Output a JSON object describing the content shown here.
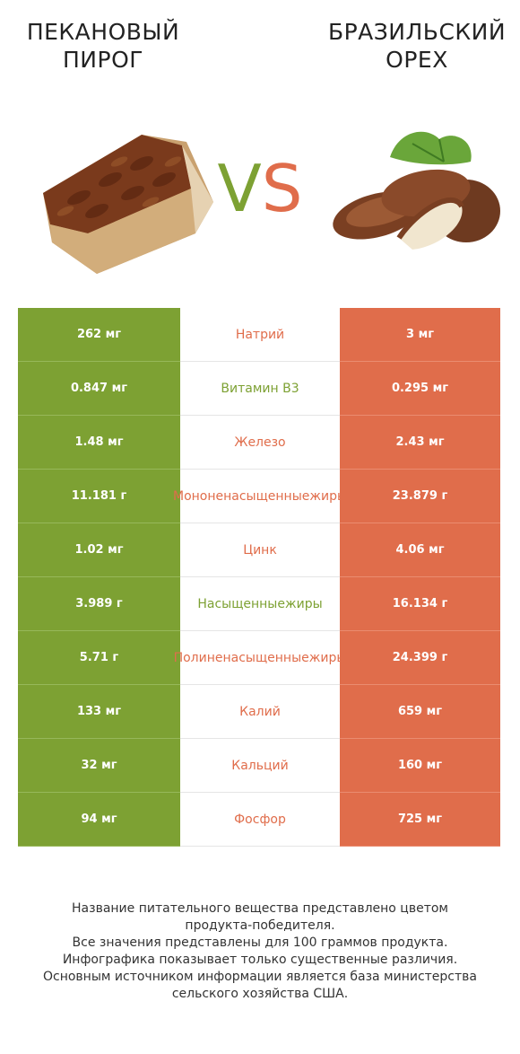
{
  "titles": {
    "left": "ПЕКАНОВЫЙ ПИРОГ",
    "right": "БРАЗИЛЬСКИЙ ОРЕХ"
  },
  "vs": {
    "v": "V",
    "s": "S"
  },
  "colors": {
    "left": "#7da133",
    "right": "#e06d4b"
  },
  "rows": [
    {
      "nutrient": "Натрий",
      "left": "262 мг",
      "right": "3 мг",
      "winner": "right"
    },
    {
      "nutrient": "Витамин B3",
      "left": "0.847 мг",
      "right": "0.295 мг",
      "winner": "left"
    },
    {
      "nutrient": "Железо",
      "left": "1.48 мг",
      "right": "2.43 мг",
      "winner": "right"
    },
    {
      "nutrient": "Мононенасыщенные жиры",
      "left": "11.181 г",
      "right": "23.879 г",
      "winner": "right"
    },
    {
      "nutrient": "Цинк",
      "left": "1.02 мг",
      "right": "4.06 мг",
      "winner": "right"
    },
    {
      "nutrient": "Насыщенные жиры",
      "left": "3.989 г",
      "right": "16.134 г",
      "winner": "left"
    },
    {
      "nutrient": "Полиненасыщенные жиры",
      "left": "5.71 г",
      "right": "24.399 г",
      "winner": "right"
    },
    {
      "nutrient": "Калий",
      "left": "133 мг",
      "right": "659 мг",
      "winner": "right"
    },
    {
      "nutrient": "Кальций",
      "left": "32 мг",
      "right": "160 мг",
      "winner": "right"
    },
    {
      "nutrient": "Фосфор",
      "left": "94 мг",
      "right": "725 мг",
      "winner": "right"
    }
  ],
  "footer": [
    "Название питательного вещества представлено цветом",
    "продукта-победителя.",
    "Все значения представлены для 100 граммов продукта.",
    "Инфографика показывает только существенные различия.",
    "Основным источником информации является база министерства",
    "сельского хозяйства США."
  ]
}
